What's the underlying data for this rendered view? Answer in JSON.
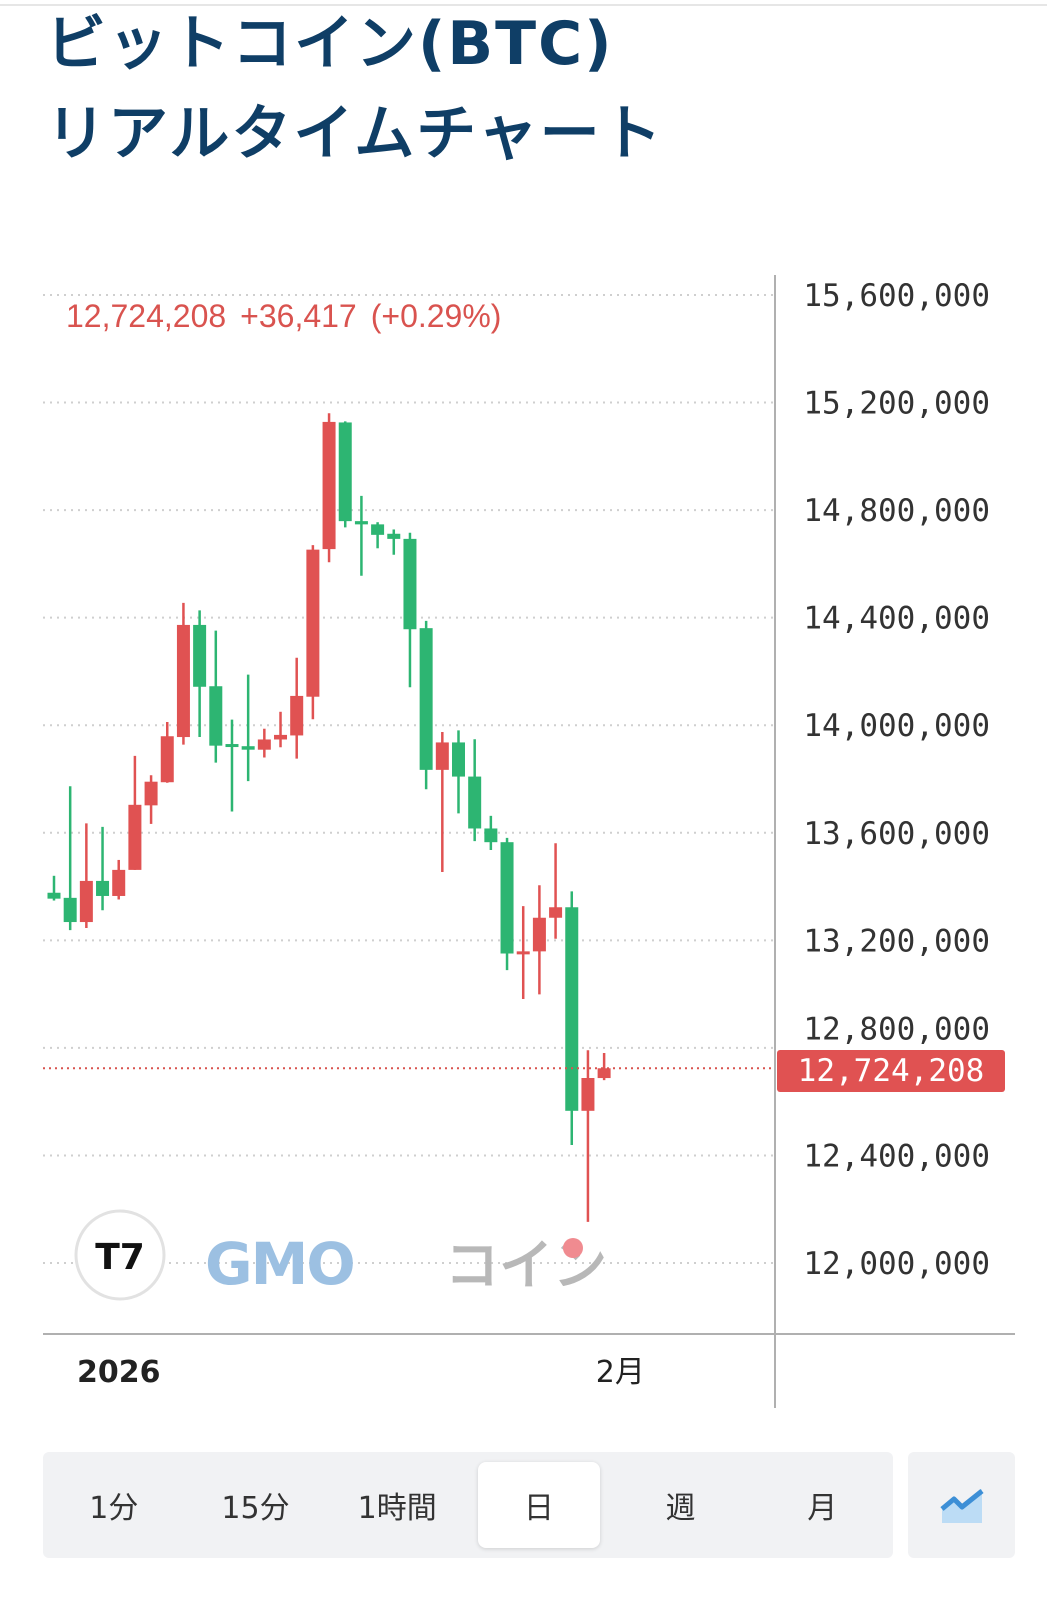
{
  "header": {
    "title_line1": "ビットコイン(BTC)",
    "title_line2": "リアルタイムチャート"
  },
  "legend": {
    "price": "12,724,208",
    "change": "+36,417",
    "change_pct": "(+0.29%)"
  },
  "last_price_tag": "12,724,208",
  "watermark": {
    "tradingview": "TV",
    "brand": "GMOコイン"
  },
  "colors": {
    "title": "#0f3e66",
    "up": "#e05252",
    "down": "#2db572",
    "last_price": "#e05252",
    "accent": "#3d8fd6"
  },
  "tabs": [
    {
      "label": "1分",
      "active": false
    },
    {
      "label": "15分",
      "active": false
    },
    {
      "label": "1時間",
      "active": false
    },
    {
      "label": "日",
      "active": true
    },
    {
      "label": "週",
      "active": false
    },
    {
      "label": "月",
      "active": false
    }
  ],
  "chart_type_button": {
    "icon": "area-chart-icon"
  },
  "chart_data": {
    "type": "candlestick",
    "title": "",
    "xlabel": "",
    "ylabel": "",
    "ylim": [
      12000000,
      15600000
    ],
    "y_ticks": [
      "12,000,000",
      "12,400,000",
      "12,800,000",
      "13,200,000",
      "13,600,000",
      "14,000,000",
      "14,400,000",
      "14,800,000",
      "15,200,000",
      "15,600,000"
    ],
    "y_tick_values": [
      12000000,
      12400000,
      12800000,
      13200000,
      13600000,
      14000000,
      14400000,
      14800000,
      15200000,
      15600000
    ],
    "x_ticks": [
      {
        "label": "2026",
        "candle_index": 4,
        "bold": true
      },
      {
        "label": "2月",
        "candle_index": 35,
        "bold": false
      }
    ],
    "grid": true,
    "up_color_meaning": "red = rise, green = fall",
    "candles": [
      {
        "o": 13377000,
        "h": 13440000,
        "l": 13348000,
        "c": 13355000
      },
      {
        "o": 13358000,
        "h": 13773000,
        "l": 13238000,
        "c": 13268000
      },
      {
        "o": 13268000,
        "h": 13635000,
        "l": 13246000,
        "c": 13421000
      },
      {
        "o": 13421000,
        "h": 13622000,
        "l": 13312000,
        "c": 13365000
      },
      {
        "o": 13365000,
        "h": 13499000,
        "l": 13352000,
        "c": 13462000
      },
      {
        "o": 13462000,
        "h": 13886000,
        "l": 13462000,
        "c": 13704000
      },
      {
        "o": 13702000,
        "h": 13814000,
        "l": 13633000,
        "c": 13790000
      },
      {
        "o": 13788000,
        "h": 14012000,
        "l": 13786000,
        "c": 13959000
      },
      {
        "o": 13956000,
        "h": 14455000,
        "l": 13928000,
        "c": 14373000
      },
      {
        "o": 14373000,
        "h": 14427000,
        "l": 13956000,
        "c": 14143000
      },
      {
        "o": 14145000,
        "h": 14352000,
        "l": 13861000,
        "c": 13924000
      },
      {
        "o": 13930000,
        "h": 14021000,
        "l": 13679000,
        "c": 13924000
      },
      {
        "o": 13922000,
        "h": 14188000,
        "l": 13792000,
        "c": 13909000
      },
      {
        "o": 13909000,
        "h": 13987000,
        "l": 13880000,
        "c": 13947000
      },
      {
        "o": 13947000,
        "h": 14050000,
        "l": 13918000,
        "c": 13964000
      },
      {
        "o": 13962000,
        "h": 14251000,
        "l": 13876000,
        "c": 14109000
      },
      {
        "o": 14106000,
        "h": 14670000,
        "l": 14022000,
        "c": 14653000
      },
      {
        "o": 14655000,
        "h": 15160000,
        "l": 14606000,
        "c": 15128000
      },
      {
        "o": 15126000,
        "h": 15130000,
        "l": 14736000,
        "c": 14759000
      },
      {
        "o": 14759000,
        "h": 14853000,
        "l": 14556000,
        "c": 14747000
      },
      {
        "o": 14747000,
        "h": 14755000,
        "l": 14658000,
        "c": 14708000
      },
      {
        "o": 14712000,
        "h": 14728000,
        "l": 14634000,
        "c": 14693000
      },
      {
        "o": 14693000,
        "h": 14716000,
        "l": 14141000,
        "c": 14357000
      },
      {
        "o": 14361000,
        "h": 14388000,
        "l": 13762000,
        "c": 13834000
      },
      {
        "o": 13834000,
        "h": 13975000,
        "l": 13454000,
        "c": 13936000
      },
      {
        "o": 13936000,
        "h": 13981000,
        "l": 13672000,
        "c": 13809000
      },
      {
        "o": 13809000,
        "h": 13948000,
        "l": 13569000,
        "c": 13616000
      },
      {
        "o": 13616000,
        "h": 13663000,
        "l": 13536000,
        "c": 13565000
      },
      {
        "o": 13565000,
        "h": 13581000,
        "l": 13089000,
        "c": 13151000
      },
      {
        "o": 13151000,
        "h": 13327000,
        "l": 12982000,
        "c": 13159000
      },
      {
        "o": 13159000,
        "h": 13405000,
        "l": 12999000,
        "c": 13284000
      },
      {
        "o": 13284000,
        "h": 13561000,
        "l": 13206000,
        "c": 13323000
      },
      {
        "o": 13323000,
        "h": 13382000,
        "l": 12439000,
        "c": 12566000
      },
      {
        "o": 12566000,
        "h": 12791000,
        "l": 12153000,
        "c": 12688000
      },
      {
        "o": 12687791,
        "h": 12781000,
        "l": 12680000,
        "c": 12724208
      }
    ],
    "last_price": 12724208
  }
}
